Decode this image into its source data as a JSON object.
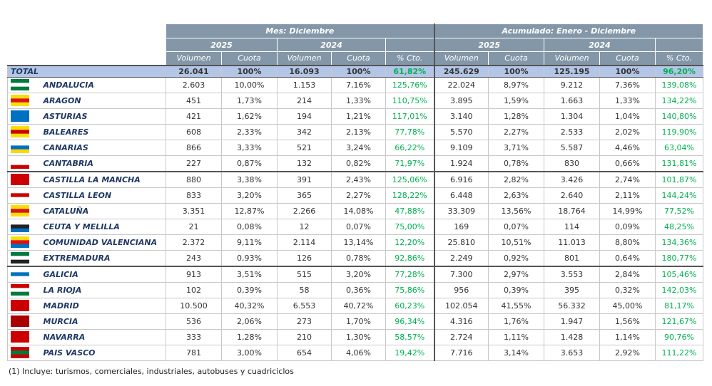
{
  "table": {
    "groups": [
      "Mes: Diciembre",
      "Acumulado: Enero - Diciembre"
    ],
    "years": [
      "2025",
      "2024"
    ],
    "columns": [
      "Volumen",
      "Cuota",
      "% Cto."
    ],
    "total": {
      "name": "TOTAL",
      "values": [
        "26.041",
        "100%",
        "16.093",
        "100%",
        "61,82%",
        "245.629",
        "100%",
        "125.195",
        "100%",
        "96,20%"
      ]
    },
    "rows": [
      {
        "name": "ANDALUCIA",
        "values": [
          "2.603",
          "10,00%",
          "1.153",
          "7,16%",
          "125,76%",
          "22.024",
          "8,97%",
          "9.212",
          "7,36%",
          "139,08%"
        ]
      },
      {
        "name": "ARAGON",
        "values": [
          "451",
          "1,73%",
          "214",
          "1,33%",
          "110,75%",
          "3.895",
          "1,59%",
          "1.663",
          "1,33%",
          "134,22%"
        ]
      },
      {
        "name": "ASTURIAS",
        "values": [
          "421",
          "1,62%",
          "194",
          "1,21%",
          "117,01%",
          "3.140",
          "1,28%",
          "1.304",
          "1,04%",
          "140,80%"
        ]
      },
      {
        "name": "BALEARES",
        "values": [
          "608",
          "2,33%",
          "342",
          "2,13%",
          "77,78%",
          "5.570",
          "2,27%",
          "2.533",
          "2,02%",
          "119,90%"
        ]
      },
      {
        "name": "CANARIAS",
        "values": [
          "866",
          "3,33%",
          "521",
          "3,24%",
          "66,22%",
          "9.109",
          "3,71%",
          "5.587",
          "4,46%",
          "63,04%"
        ]
      },
      {
        "name": "CANTABRIA",
        "values": [
          "227",
          "0,87%",
          "132",
          "0,82%",
          "71,97%",
          "1.924",
          "0,78%",
          "830",
          "0,66%",
          "131,81%"
        ]
      },
      {
        "name": "CASTILLA LA MANCHA",
        "values": [
          "880",
          "3,38%",
          "391",
          "2,43%",
          "125,06%",
          "6.916",
          "2,82%",
          "3.426",
          "2,74%",
          "101,87%"
        ]
      },
      {
        "name": "CASTILLA LEON",
        "values": [
          "833",
          "3,20%",
          "365",
          "2,27%",
          "128,22%",
          "6.448",
          "2,63%",
          "2.640",
          "2,11%",
          "144,24%"
        ]
      },
      {
        "name": "CATALUÑA",
        "values": [
          "3.351",
          "12,87%",
          "2.266",
          "14,08%",
          "47,88%",
          "33.309",
          "13,56%",
          "18.764",
          "14,99%",
          "77,52%"
        ]
      },
      {
        "name": "CEUTA Y MELILLA",
        "values": [
          "21",
          "0,08%",
          "12",
          "0,07%",
          "75,00%",
          "169",
          "0,07%",
          "114",
          "0,09%",
          "48,25%"
        ]
      },
      {
        "name": "COMUNIDAD VALENCIANA",
        "values": [
          "2.372",
          "9,11%",
          "2.114",
          "13,14%",
          "12,20%",
          "25.810",
          "10,51%",
          "11.013",
          "8,80%",
          "134,36%"
        ]
      },
      {
        "name": "EXTREMADURA",
        "values": [
          "243",
          "0,93%",
          "126",
          "0,78%",
          "92,86%",
          "2.249",
          "0,92%",
          "801",
          "0,64%",
          "180,77%"
        ]
      },
      {
        "name": "GALICIA",
        "values": [
          "913",
          "3,51%",
          "515",
          "3,20%",
          "77,28%",
          "7.300",
          "2,97%",
          "3.553",
          "2,84%",
          "105,46%"
        ]
      },
      {
        "name": "LA RIOJA",
        "values": [
          "102",
          "0,39%",
          "58",
          "0,36%",
          "75,86%",
          "956",
          "0,39%",
          "395",
          "0,32%",
          "142,03%"
        ]
      },
      {
        "name": "MADRID",
        "values": [
          "10.500",
          "40,32%",
          "6.553",
          "40,72%",
          "60,23%",
          "102.054",
          "41,55%",
          "56.332",
          "45,00%",
          "81,17%"
        ]
      },
      {
        "name": "MURCIA",
        "values": [
          "536",
          "2,06%",
          "273",
          "1,70%",
          "96,34%",
          "4.316",
          "1,76%",
          "1.947",
          "1,56%",
          "121,67%"
        ]
      },
      {
        "name": "NAVARRA",
        "values": [
          "333",
          "1,28%",
          "210",
          "1,30%",
          "58,57%",
          "2.724",
          "1,11%",
          "1.428",
          "1,14%",
          "90,76%"
        ]
      },
      {
        "name": "PAIS VASCO",
        "values": [
          "781",
          "3,00%",
          "654",
          "4,06%",
          "19,42%",
          "7.716",
          "3,14%",
          "3.653",
          "2,92%",
          "111,22%"
        ]
      }
    ],
    "footnote": "(1) Incluye: turismos, comerciales, industriales, autobuses y cuadriciclos"
  }
}
